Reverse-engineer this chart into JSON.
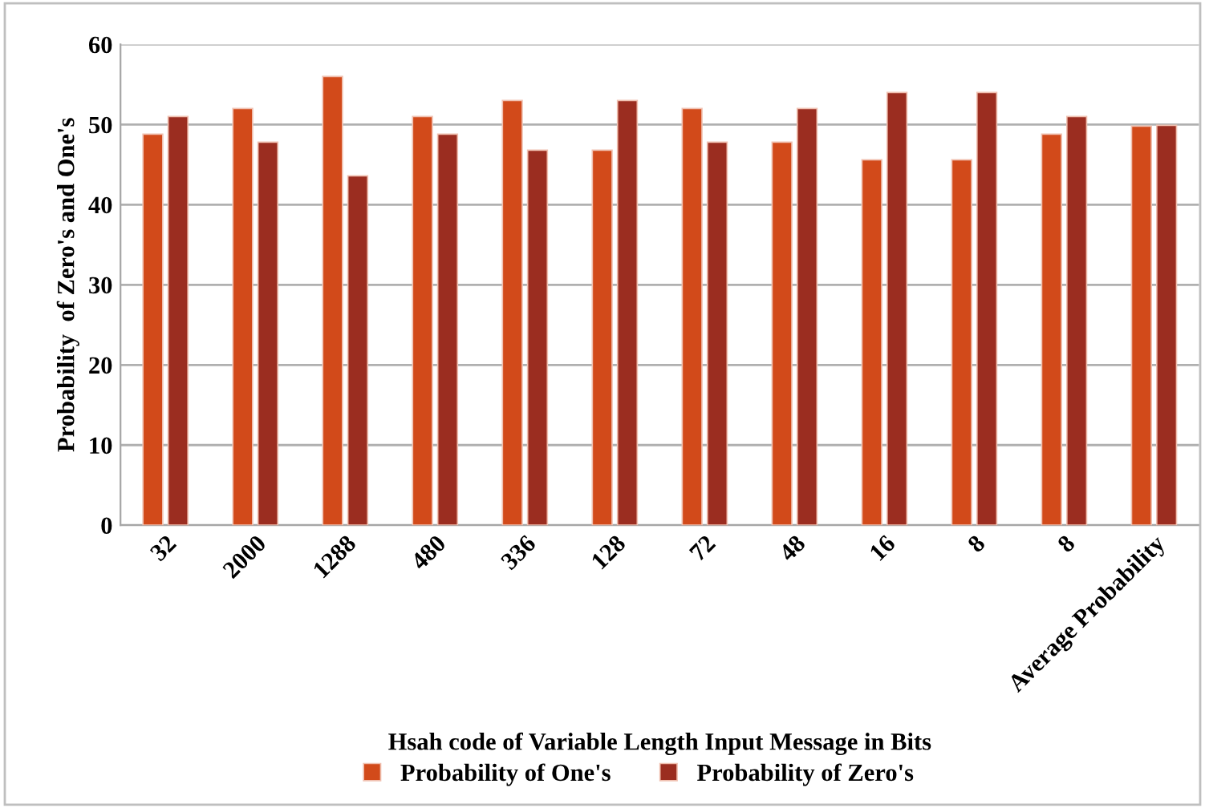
{
  "chart_data": {
    "type": "bar",
    "xlabel": "Hsah code of Variable Length Input Message in Bits",
    "ylabel": "Probability  of Zero's and One's",
    "categories": [
      "32",
      "2000",
      "1288",
      "480",
      "336",
      "128",
      "72",
      "48",
      "16",
      "8",
      "8",
      "Average Probability"
    ],
    "series": [
      {
        "name": "Probability of One's",
        "color": "#d24a1a",
        "values": [
          48.8,
          52,
          56,
          51,
          53,
          46.8,
          52,
          47.8,
          45.6,
          45.6,
          48.8,
          49.8
        ]
      },
      {
        "name": "Probability of Zero's",
        "color": "#9b2d20",
        "values": [
          51,
          47.8,
          43.6,
          48.8,
          46.8,
          53,
          47.8,
          52,
          54,
          54,
          51,
          49.9
        ]
      }
    ],
    "ylim": [
      0,
      60
    ],
    "yticks": [
      0,
      10,
      20,
      30,
      40,
      50,
      60
    ],
    "grid": "y",
    "legend": "bottom"
  }
}
